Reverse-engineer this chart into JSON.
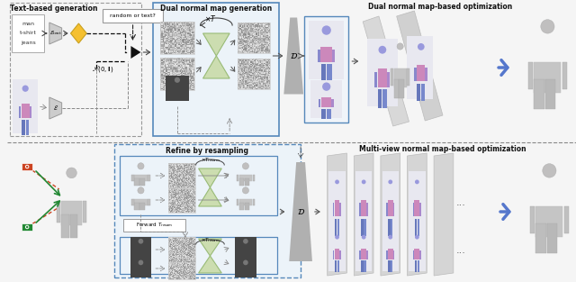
{
  "bg_color": "#f5f5f5",
  "top_section_label": "Text-based generation",
  "dual_gen_label": "Dual normal map generation",
  "dual_opt_label": "Dual normal map-based optimization",
  "refine_label": "Refine by resampling",
  "multi_view_label": "Multi-view normal map-based optimization",
  "random_or_text": "random or text?",
  "figure_width": 6.4,
  "figure_height": 3.13
}
